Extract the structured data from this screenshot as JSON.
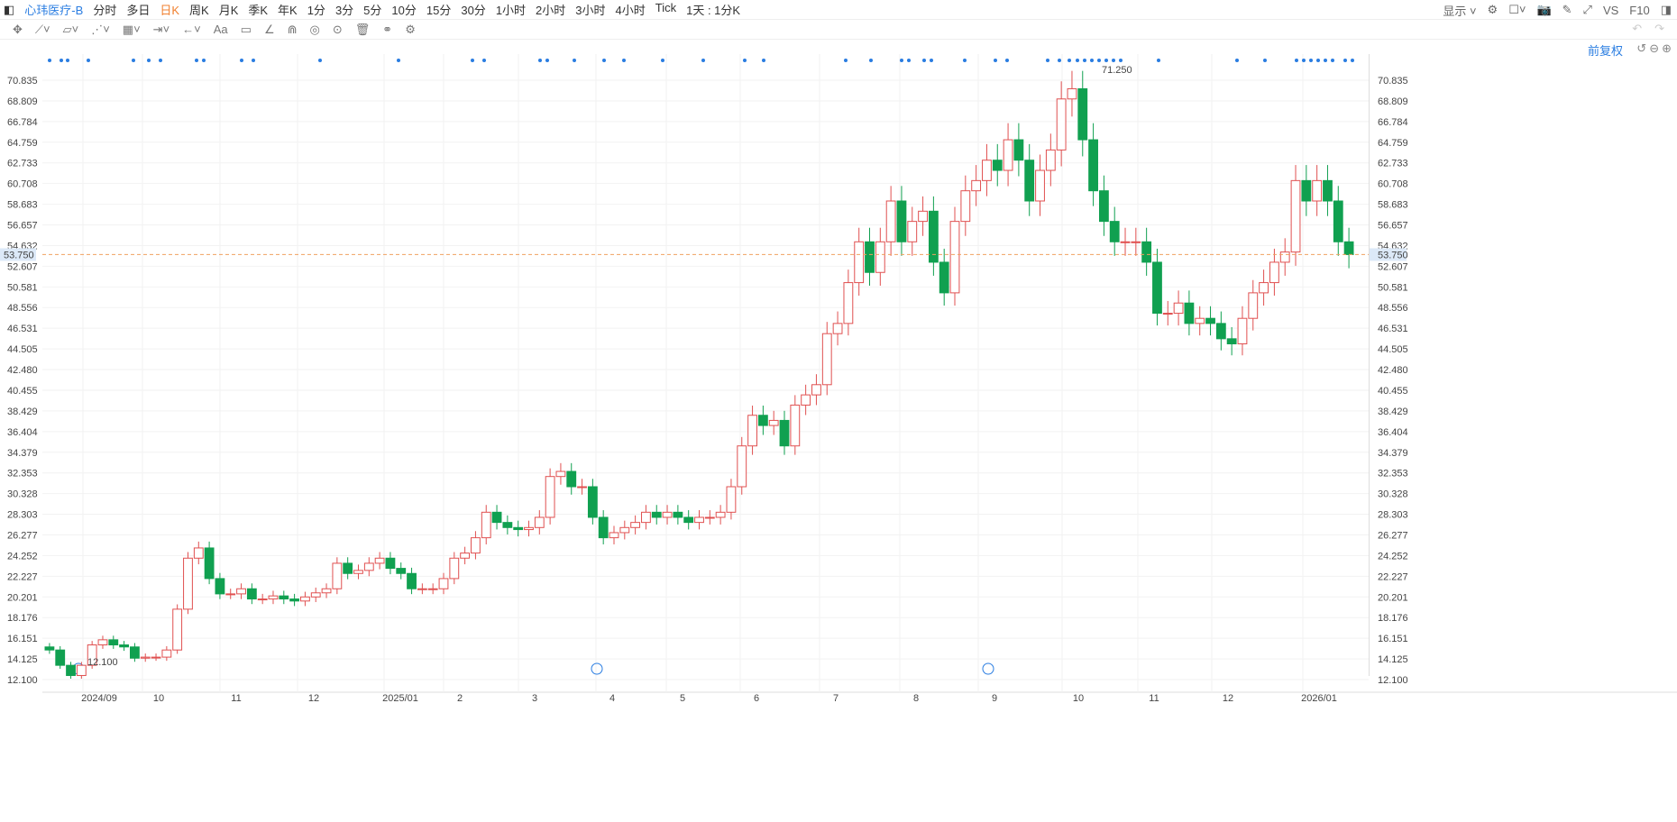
{
  "header": {
    "title": "心玮医疗-B",
    "periods": [
      "分时",
      "多日",
      "日K",
      "周K",
      "月K",
      "季K",
      "年K",
      "1分",
      "3分",
      "5分",
      "10分",
      "15分",
      "30分",
      "1小时",
      "2小时",
      "3小时",
      "4小时",
      "Tick",
      "1天 : 1分K"
    ],
    "active_period": "日K",
    "right": {
      "display": "显示",
      "vs": "VS",
      "f10": "F10"
    }
  },
  "chart_header": {
    "adjust": "前复权"
  },
  "y_axis": {
    "ticks": [
      "12.100",
      "14.125",
      "16.151",
      "18.176",
      "20.201",
      "22.227",
      "24.252",
      "26.277",
      "28.303",
      "30.328",
      "32.353",
      "34.379",
      "36.404",
      "38.429",
      "40.455",
      "42.480",
      "44.505",
      "46.531",
      "48.556",
      "50.581",
      "52.607",
      "54.632",
      "56.657",
      "58.683",
      "60.708",
      "62.733",
      "64.759",
      "66.784",
      "68.809",
      "70.835"
    ],
    "min": 12.1,
    "max": 70.835
  },
  "x_axis": {
    "labels": [
      "2024/09",
      "10",
      "11",
      "12",
      "2025/01",
      "2",
      "3",
      "4",
      "5",
      "6",
      "7",
      "8",
      "9",
      "10",
      "11",
      "12",
      "2026/01"
    ]
  },
  "annotations": {
    "high": "71.250",
    "low": "12.100",
    "current": "53.750"
  },
  "colors": {
    "up": "#e05050",
    "down": "#10a050",
    "accent": "#2a7de1",
    "current_line": "#f0a060"
  },
  "chart_data": {
    "type": "candlestick",
    "closes": [
      15,
      13.5,
      12.5,
      13.5,
      15.5,
      16,
      15.5,
      15.3,
      14.2,
      14.3,
      14.3,
      15,
      19,
      24,
      25,
      22,
      20.5,
      20.5,
      21,
      20,
      20,
      20.3,
      20,
      19.8,
      20.2,
      20.6,
      21,
      23.5,
      22.5,
      22.8,
      23.5,
      24,
      23,
      22.5,
      21,
      21,
      21,
      22,
      24,
      24.5,
      26,
      28.5,
      27.5,
      27,
      26.8,
      27,
      28,
      32,
      32.5,
      31,
      31,
      28,
      26,
      26.5,
      27,
      27.5,
      28.5,
      28,
      28.5,
      28,
      27.5,
      28,
      28,
      28.5,
      31,
      35,
      38,
      37,
      37.5,
      35,
      39,
      40,
      41,
      46,
      47,
      51,
      55,
      52,
      55,
      59,
      55,
      57,
      58,
      53,
      50,
      57,
      60,
      61,
      63,
      62,
      65,
      63,
      59,
      62,
      64,
      69,
      70,
      65,
      60,
      57,
      55,
      55,
      55,
      53,
      48,
      48,
      49,
      47,
      47.5,
      47,
      45.5,
      45,
      47.5,
      50,
      51,
      53,
      54,
      61,
      59,
      61,
      59,
      55,
      53.75
    ]
  }
}
